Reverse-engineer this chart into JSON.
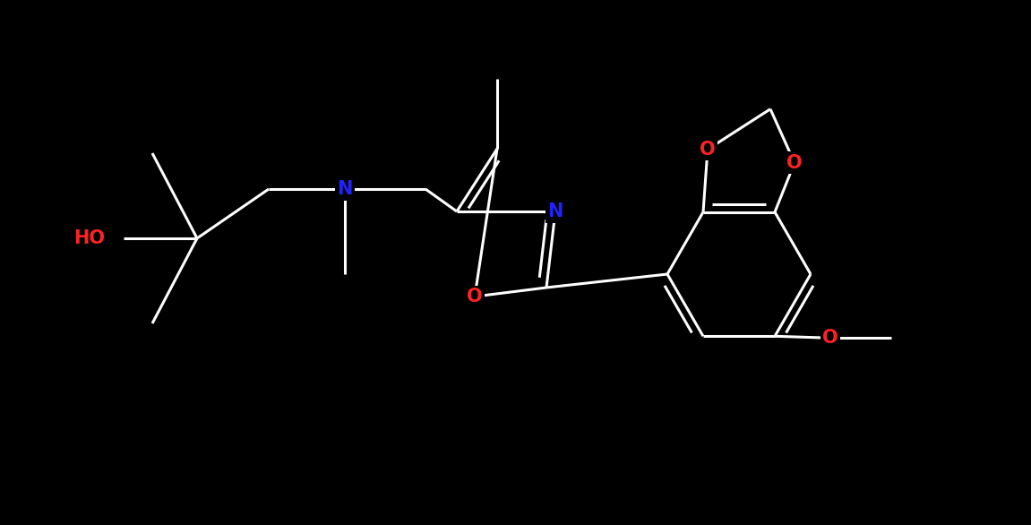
{
  "bg_color": "#000000",
  "white": "#ffffff",
  "blue": "#2222ff",
  "red": "#ff2222",
  "lw": 2.2,
  "db_off": 0.09,
  "fs": 15,
  "figsize": [
    11.51,
    5.86
  ],
  "dpi": 100,
  "xlim": [
    0,
    11.51
  ],
  "ylim": [
    0,
    5.86
  ]
}
